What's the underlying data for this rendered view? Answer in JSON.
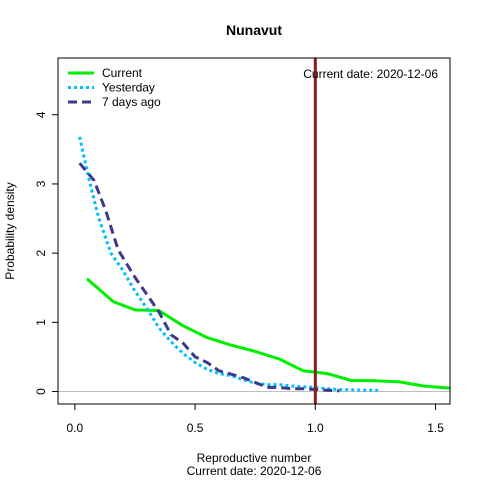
{
  "chart_data": {
    "type": "line",
    "title": "Nunavut",
    "xlabel": "Reproductive number",
    "xlabel_sub": "Current date:  2020-12-06",
    "ylabel": "Probability density",
    "xlim": [
      -0.07,
      1.56
    ],
    "ylim": [
      -0.18,
      4.82
    ],
    "x_ticks": [
      0.0,
      0.5,
      1.0,
      1.5
    ],
    "x_tick_labels": [
      "0.0",
      "0.5",
      "1.0",
      "1.5"
    ],
    "y_ticks": [
      0,
      1,
      2,
      3,
      4
    ],
    "y_tick_labels": [
      "0",
      "1",
      "2",
      "3",
      "4"
    ],
    "legend_position": "top-left",
    "annotation": "Current date:  2020-12-06",
    "threshold": {
      "x": 1.0,
      "color": "#8b1a1a"
    },
    "baseline": {
      "y": 0,
      "color": "#bebebe"
    },
    "series": [
      {
        "name": "Current",
        "color": "#00ee00",
        "dash": "solid",
        "x": [
          0.05,
          0.16,
          0.25,
          0.35,
          0.45,
          0.55,
          0.65,
          0.75,
          0.85,
          0.95,
          1.05,
          1.15,
          1.25,
          1.35,
          1.45,
          1.56
        ],
        "y": [
          1.63,
          1.3,
          1.18,
          1.17,
          0.95,
          0.78,
          0.67,
          0.58,
          0.47,
          0.3,
          0.26,
          0.16,
          0.155,
          0.14,
          0.08,
          0.05
        ]
      },
      {
        "name": "Yesterday",
        "color": "#00bfff",
        "dash": "dotted",
        "x": [
          0.02,
          0.06,
          0.1,
          0.15,
          0.2,
          0.25,
          0.3,
          0.35,
          0.4,
          0.45,
          0.5,
          0.55,
          0.6,
          0.65,
          0.7,
          0.75,
          0.8,
          0.85,
          0.9,
          0.95,
          1.0,
          1.05,
          1.1,
          1.15,
          1.2,
          1.27
        ],
        "y": [
          3.68,
          3.05,
          2.5,
          2.0,
          1.75,
          1.45,
          1.2,
          0.92,
          0.72,
          0.55,
          0.42,
          0.32,
          0.26,
          0.23,
          0.17,
          0.12,
          0.1,
          0.1,
          0.08,
          0.07,
          0.06,
          0.04,
          0.03,
          0.025,
          0.02,
          0.02
        ]
      },
      {
        "name": "7 days ago",
        "color": "#3b3b8b",
        "dash": "dashed",
        "x": [
          0.02,
          0.08,
          0.13,
          0.18,
          0.25,
          0.3,
          0.35,
          0.4,
          0.45,
          0.5,
          0.55,
          0.6,
          0.65,
          0.7,
          0.75,
          0.8,
          0.85,
          0.9,
          0.95,
          1.0,
          1.05,
          1.1
        ],
        "y": [
          3.3,
          3.05,
          2.6,
          2.05,
          1.65,
          1.4,
          1.15,
          0.82,
          0.7,
          0.5,
          0.42,
          0.3,
          0.25,
          0.2,
          0.13,
          0.06,
          0.06,
          0.04,
          0.04,
          0.03,
          0.02,
          0.01
        ]
      }
    ]
  }
}
